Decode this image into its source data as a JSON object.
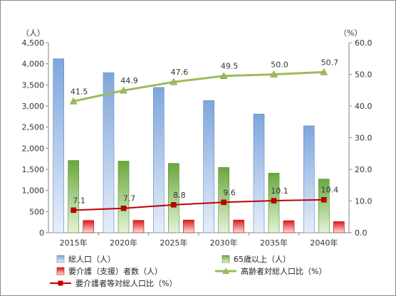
{
  "chart_data": {
    "type": "bar",
    "categories": [
      "2015年",
      "2020年",
      "2025年",
      "2030年",
      "2035年",
      "2040年"
    ],
    "left_axis": {
      "unit": "（人）",
      "min": 0,
      "max": 4500,
      "step": 500,
      "ticks": [
        "0",
        "500",
        "1,000",
        "1,500",
        "2,000",
        "2,500",
        "3,000",
        "3,500",
        "4,000",
        "4,500"
      ]
    },
    "right_axis": {
      "unit": "（%）",
      "min": 0,
      "max": 60,
      "step": 10,
      "ticks": [
        "0.0",
        "10.0",
        "20.0",
        "30.0",
        "40.0",
        "50.0",
        "60.0"
      ]
    },
    "series": [
      {
        "name": "総人口（人）",
        "kind": "bar",
        "axis": "left",
        "color": "#8db3e2",
        "values": [
          4120,
          3790,
          3440,
          3130,
          2810,
          2530
        ]
      },
      {
        "name": "65歳以上（人）",
        "kind": "bar",
        "axis": "left",
        "color": "#70b040",
        "values": [
          1710,
          1695,
          1640,
          1545,
          1410,
          1270
        ]
      },
      {
        "name": "要介護（支援）者数（人）",
        "kind": "bar",
        "axis": "left",
        "color": "#e02020",
        "values": [
          290,
          292,
          300,
          300,
          285,
          262
        ]
      },
      {
        "name": "高齢者対総人口比（%）",
        "kind": "line",
        "axis": "right",
        "color": "#9bbb59",
        "marker": "triangle",
        "values": [
          41.5,
          44.9,
          47.6,
          49.5,
          50.0,
          50.7
        ],
        "labels": [
          "41.5",
          "44.9",
          "47.6",
          "49.5",
          "50.0",
          "50.7"
        ]
      },
      {
        "name": "要介護者等対総人口比（%）",
        "kind": "line",
        "axis": "right",
        "color": "#c00000",
        "marker": "square",
        "values": [
          7.1,
          7.7,
          8.8,
          9.6,
          10.1,
          10.4
        ],
        "labels": [
          "7.1",
          "7.7",
          "8.8",
          "9.6",
          "10.1",
          "10.4"
        ]
      }
    ],
    "grid": false,
    "legend_position": "bottom"
  }
}
